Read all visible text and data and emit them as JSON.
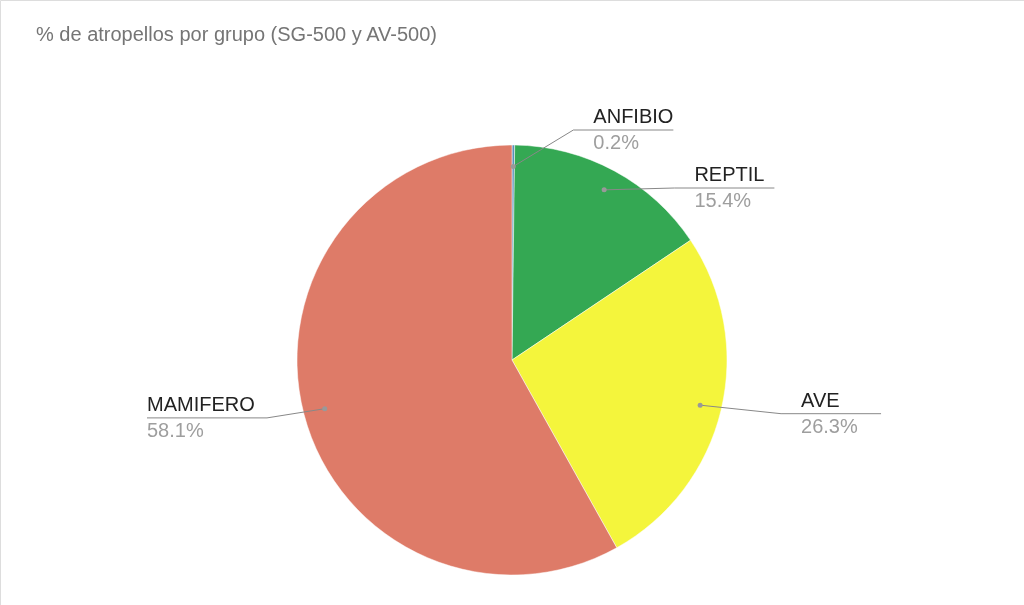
{
  "chart_data": {
    "type": "pie",
    "title": "% de atropellos por grupo (SG-500 y AV-500)",
    "categories": [
      "ANFIBIO",
      "REPTIL",
      "AVE",
      "MAMIFERO"
    ],
    "values": [
      0.2,
      15.4,
      26.3,
      58.1
    ],
    "colors": [
      "#5b8fb9",
      "#34a853",
      "#f4f53c",
      "#de7b68"
    ],
    "value_labels": [
      "0.2%",
      "15.4%",
      "26.3%",
      "58.1%"
    ]
  }
}
